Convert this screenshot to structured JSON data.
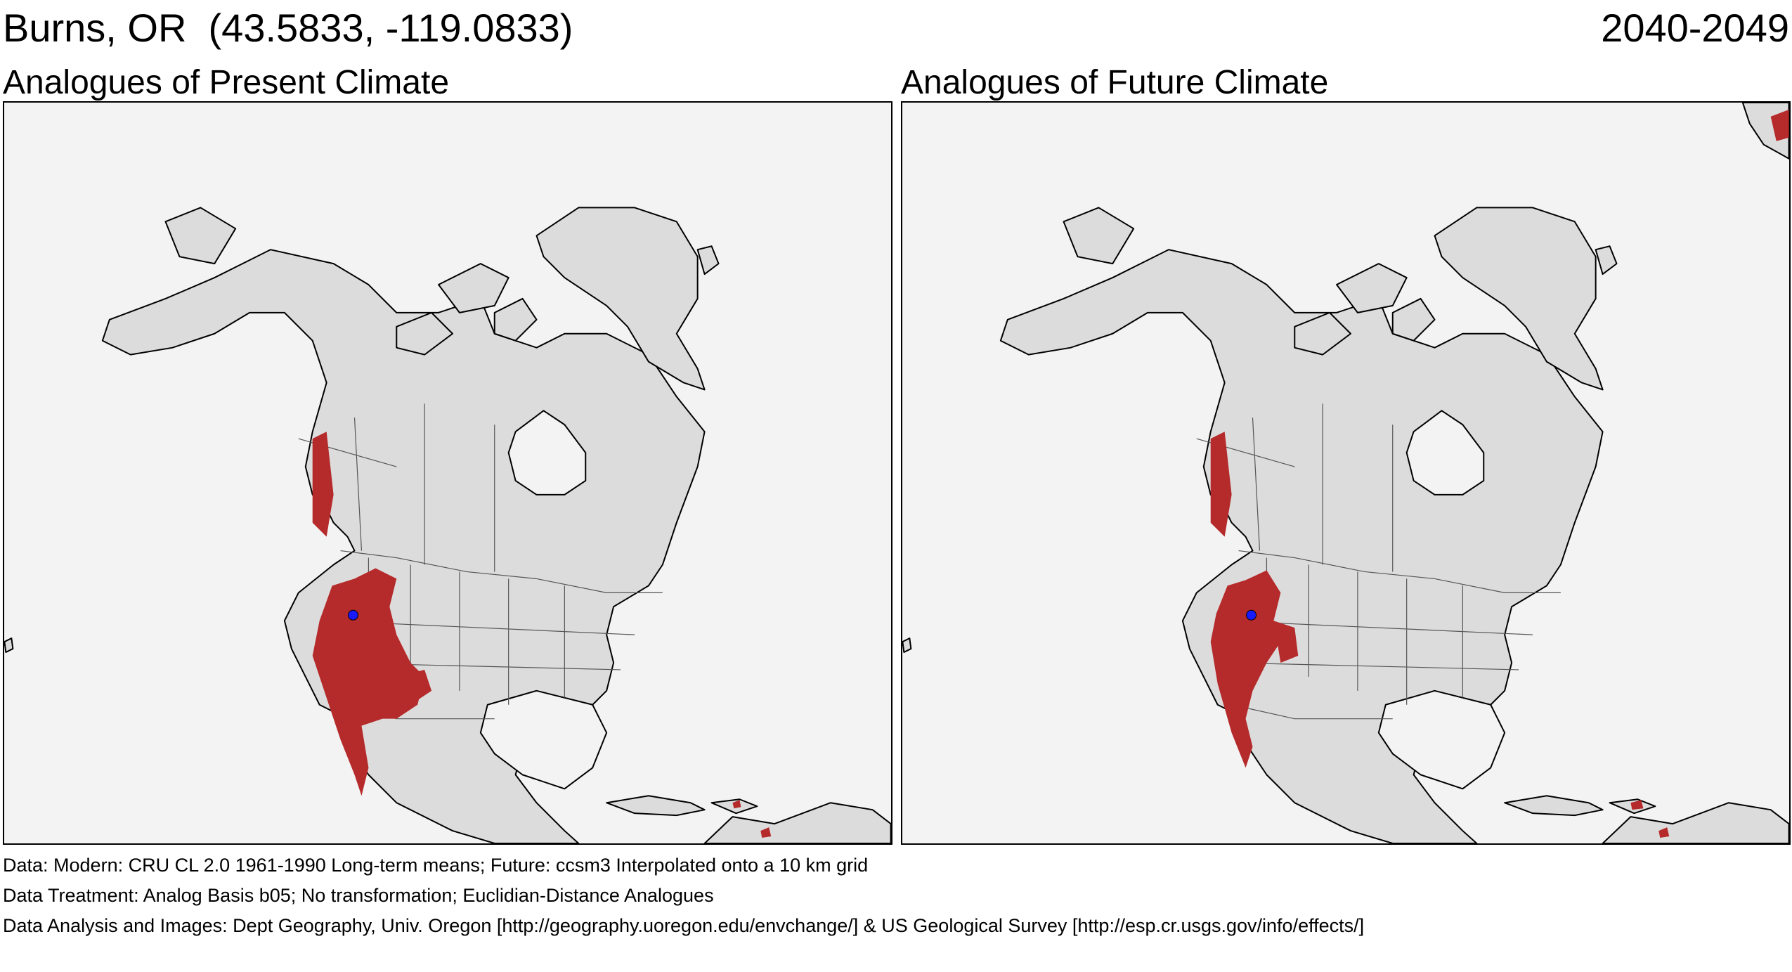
{
  "header": {
    "location": "Burns, OR  (43.5833, -119.0833)",
    "period": "2040-2049"
  },
  "panels": [
    {
      "id": "present",
      "title": "Analogues of Present Climate"
    },
    {
      "id": "future",
      "title": "Analogues of Future Climate"
    }
  ],
  "colors": {
    "analog_region": "#b52a2a",
    "site_marker": "#1a1aff",
    "land": "#dcdcdc",
    "ocean": "#f3f3f3",
    "boundary": "#000000"
  },
  "footer": {
    "data": "Data:  Modern: CRU CL 2.0 1961-1990 Long-term means; Future: ccsm3 Interpolated onto a 10 km grid",
    "treatment": "Data Treatment:  Analog Basis b05; No transformation; Euclidian-Distance Analogues",
    "analysis": "Data Analysis and Images:  Dept Geography, Univ. Oregon [http://geography.uoregon.edu/envchange/] & US Geological Survey [http://esp.cr.usgs.gov/info/effects/]"
  }
}
